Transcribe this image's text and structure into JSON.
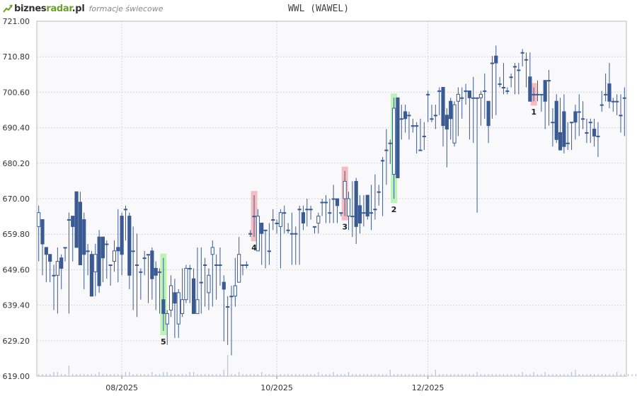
{
  "header": {
    "logo_text_main": "biznes",
    "logo_text_accent": "radar",
    "logo_text_tld": ".pl",
    "logo_subtitle": "formacje świecowe",
    "title": "WWL (WAWEL)"
  },
  "colors": {
    "background": "#f9f9fb",
    "grid": "#d8d8dc",
    "candle_down": "#3a5a93",
    "candle_up_fill": "#ffffff",
    "candle_up_stroke": "#3a5a93",
    "volume": "#a9c6e6",
    "highlight_bearish": "#f4a7ad",
    "highlight_bullish": "#a8f0a0",
    "logo_accent": "#6aa126"
  },
  "chart_data": {
    "type": "candlestick",
    "title": "WWL (WAWEL)",
    "ylim": [
      619.0,
      721.0
    ],
    "yticks": [
      "721.00",
      "710.80",
      "700.60",
      "690.40",
      "680.20",
      "670.00",
      "659.80",
      "649.60",
      "639.40",
      "629.20",
      "619.00"
    ],
    "xticks": [
      {
        "index": 22,
        "label": "08/2025"
      },
      {
        "index": 63,
        "label": "10/2025"
      },
      {
        "index": 103,
        "label": "12/2025"
      }
    ],
    "candles": [
      [
        662.0,
        666.0,
        668.0,
        652.0
      ],
      [
        664.0,
        657.0,
        664.0,
        648.0
      ],
      [
        656.0,
        654.0,
        656.0,
        646.0
      ],
      [
        654.0,
        652.0,
        654.0,
        646.0
      ],
      [
        648.0,
        648.0,
        651.0,
        638.0
      ],
      [
        648.0,
        652.0,
        656.0,
        637.0
      ],
      [
        653.0,
        650.0,
        654.0,
        644.0
      ],
      [
        656.0,
        656.0,
        656.0,
        652.0
      ],
      [
        664.0,
        664.0,
        666.0,
        637.0
      ],
      [
        665.0,
        662.0,
        665.0,
        652.0
      ],
      [
        672.0,
        656.0,
        672.0,
        656.0
      ],
      [
        669.0,
        651.0,
        672.0,
        651.0
      ],
      [
        664.0,
        654.0,
        666.0,
        644.0
      ],
      [
        655.0,
        655.0,
        657.0,
        648.0
      ],
      [
        654.0,
        642.0,
        655.0,
        642.0
      ],
      [
        649.0,
        654.0,
        657.0,
        642.0
      ],
      [
        659.0,
        645.0,
        661.0,
        643.0
      ],
      [
        659.0,
        653.0,
        659.0,
        646.0
      ],
      [
        657.0,
        657.0,
        658.0,
        647.0
      ],
      [
        651.0,
        651.0,
        651.0,
        645.0
      ],
      [
        652.0,
        655.0,
        658.0,
        649.0
      ],
      [
        656.0,
        655.0,
        667.0,
        646.0
      ],
      [
        665.0,
        654.0,
        666.0,
        648.0
      ],
      [
        667.0,
        667.0,
        668.0,
        658.0
      ],
      [
        665.0,
        648.0,
        666.0,
        644.0
      ],
      [
        655.0,
        655.0,
        662.0,
        638.0
      ],
      [
        651.0,
        651.0,
        660.0,
        636.0
      ],
      [
        649.0,
        649.0,
        650.0,
        641.0
      ],
      [
        653.0,
        653.0,
        655.0,
        648.0
      ],
      [
        654.0,
        654.0,
        654.0,
        640.0
      ],
      [
        655.0,
        647.0,
        656.0,
        641.0
      ],
      [
        650.0,
        648.0,
        652.0,
        638.0
      ],
      [
        649.0,
        649.0,
        650.0,
        637.0
      ],
      [
        641.0,
        637.0,
        653.0,
        632.0
      ],
      [
        634.0,
        637.0,
        638.0,
        628.0
      ],
      [
        638.0,
        645.0,
        648.0,
        636.0
      ],
      [
        643.0,
        640.0,
        647.0,
        630.0
      ],
      [
        634.0,
        643.0,
        644.0,
        630.0
      ],
      [
        637.0,
        641.0,
        650.0,
        636.0
      ],
      [
        641.0,
        650.0,
        651.0,
        640.0
      ],
      [
        650.0,
        650.0,
        651.0,
        640.0
      ],
      [
        647.0,
        637.0,
        650.0,
        637.0
      ],
      [
        637.0,
        641.0,
        656.0,
        637.0
      ],
      [
        646.0,
        646.0,
        656.0,
        637.0
      ],
      [
        651.0,
        651.0,
        653.0,
        639.0
      ],
      [
        643.0,
        648.0,
        650.0,
        638.0
      ],
      [
        654.0,
        656.0,
        658.0,
        639.0
      ],
      [
        651.0,
        651.0,
        654.0,
        641.0
      ],
      [
        651.0,
        651.0,
        656.0,
        645.0
      ],
      [
        646.0,
        644.0,
        648.0,
        629.0
      ],
      [
        639.0,
        639.0,
        642.0,
        628.0
      ],
      [
        642.0,
        642.0,
        645.0,
        625.0
      ],
      [
        642.0,
        645.0,
        653.0,
        639.0
      ],
      [
        646.0,
        654.0,
        659.0,
        646.0
      ],
      [
        651.0,
        651.0,
        651.0,
        648.0
      ],
      [
        651.0,
        651.0,
        652.0,
        650.0
      ],
      [
        660.0,
        660.0,
        661.0,
        659.0
      ],
      [
        665.0,
        665.0,
        671.0,
        659.0
      ],
      [
        655.0,
        665.0,
        667.0,
        658.0
      ],
      [
        663.0,
        660.0,
        662.0,
        651.0
      ],
      [
        661.0,
        661.0,
        661.0,
        650.0
      ],
      [
        655.0,
        655.0,
        663.0,
        651.0
      ],
      [
        664.0,
        664.0,
        667.0,
        661.0
      ],
      [
        663.0,
        663.0,
        664.0,
        660.0
      ],
      [
        662.0,
        666.0,
        667.0,
        650.0
      ],
      [
        666.0,
        666.0,
        668.0,
        660.0
      ],
      [
        661.0,
        661.0,
        663.0,
        660.0
      ],
      [
        660.0,
        660.0,
        666.0,
        651.0
      ],
      [
        660.0,
        660.0,
        662.0,
        651.0
      ],
      [
        667.0,
        667.0,
        668.0,
        651.0
      ],
      [
        666.0,
        663.0,
        668.0,
        661.0
      ],
      [
        667.0,
        667.0,
        670.0,
        662.0
      ],
      [
        667.0,
        667.0,
        668.0,
        664.0
      ],
      [
        662.0,
        662.0,
        662.0,
        660.0
      ],
      [
        663.0,
        665.0,
        666.0,
        660.0
      ],
      [
        669.0,
        669.0,
        670.0,
        665.0
      ],
      [
        669.0,
        669.0,
        671.0,
        663.0
      ],
      [
        666.0,
        666.0,
        670.0,
        663.0
      ],
      [
        670.0,
        670.0,
        674.0,
        663.0
      ],
      [
        670.0,
        668.0,
        670.0,
        663.0
      ],
      [
        666.0,
        666.0,
        666.0,
        665.0
      ],
      [
        670.0,
        675.0,
        678.0,
        665.0
      ],
      [
        665.0,
        670.0,
        672.0,
        661.0
      ],
      [
        665.0,
        665.0,
        675.0,
        659.0
      ],
      [
        675.0,
        662.0,
        676.0,
        657.0
      ],
      [
        668.0,
        663.0,
        671.0,
        660.0
      ],
      [
        666.0,
        666.0,
        671.0,
        662.0
      ],
      [
        671.0,
        665.0,
        671.0,
        664.0
      ],
      [
        666.0,
        666.0,
        674.0,
        661.0
      ],
      [
        667.0,
        667.0,
        677.0,
        664.0
      ],
      [
        672.0,
        672.0,
        674.0,
        668.0
      ],
      [
        681.0,
        681.0,
        682.0,
        665.0
      ],
      [
        684.0,
        684.0,
        690.0,
        674.0
      ],
      [
        686.0,
        686.0,
        687.0,
        680.0
      ],
      [
        677.0,
        696.0,
        699.0,
        670.0
      ],
      [
        699.0,
        676.0,
        699.0,
        676.0
      ],
      [
        693.0,
        693.0,
        697.0,
        687.0
      ],
      [
        695.0,
        693.0,
        697.0,
        689.0
      ],
      [
        694.0,
        694.0,
        695.0,
        687.0
      ],
      [
        691.0,
        691.0,
        693.0,
        689.0
      ],
      [
        691.0,
        691.0,
        692.0,
        683.0
      ],
      [
        684.0,
        684.0,
        693.0,
        684.0
      ],
      [
        688.0,
        688.0,
        692.0,
        684.0
      ],
      [
        700.0,
        700.0,
        701.0,
        692.0
      ],
      [
        693.0,
        693.0,
        697.0,
        692.0
      ],
      [
        694.0,
        694.0,
        697.0,
        690.0
      ],
      [
        701.0,
        701.0,
        702.0,
        694.0
      ],
      [
        702.0,
        691.0,
        702.0,
        685.0
      ],
      [
        694.0,
        690.0,
        696.0,
        679.0
      ],
      [
        698.0,
        693.0,
        699.0,
        687.0
      ],
      [
        686.0,
        697.0,
        698.0,
        685.0
      ],
      [
        698.0,
        700.0,
        702.0,
        688.0
      ],
      [
        699.0,
        699.0,
        702.0,
        693.0
      ],
      [
        701.0,
        701.0,
        703.0,
        697.0
      ],
      [
        701.0,
        699.0,
        701.0,
        687.0
      ],
      [
        699.0,
        699.0,
        705.0,
        686.0
      ],
      [
        699.0,
        699.0,
        699.0,
        666.0
      ],
      [
        699.0,
        700.0,
        701.0,
        691.0
      ],
      [
        701.0,
        701.0,
        706.0,
        693.0
      ],
      [
        698.0,
        691.0,
        698.0,
        686.0
      ],
      [
        709.0,
        709.0,
        711.0,
        693.0
      ],
      [
        711.0,
        709.0,
        714.0,
        694.0
      ],
      [
        703.0,
        703.0,
        705.0,
        702.0
      ],
      [
        702.0,
        702.0,
        709.0,
        700.0
      ],
      [
        701.0,
        701.0,
        702.0,
        700.0
      ],
      [
        705.0,
        705.0,
        706.0,
        702.0
      ],
      [
        708.0,
        708.0,
        709.0,
        700.0
      ],
      [
        707.0,
        707.0,
        709.0,
        700.0
      ],
      [
        712.0,
        712.0,
        713.0,
        708.0
      ],
      [
        710.0,
        710.0,
        712.0,
        702.0
      ],
      [
        705.0,
        698.0,
        712.0,
        698.0
      ],
      [
        700.0,
        700.0,
        702.0,
        698.0
      ],
      [
        700.0,
        700.0,
        704.0,
        698.0
      ],
      [
        700.0,
        700.0,
        700.0,
        695.0
      ],
      [
        704.0,
        698.0,
        704.0,
        690.0
      ],
      [
        704.0,
        704.0,
        707.0,
        691.0
      ],
      [
        692.0,
        692.0,
        696.0,
        685.0
      ],
      [
        698.0,
        687.0,
        700.0,
        686.0
      ],
      [
        689.0,
        684.0,
        699.0,
        684.0
      ],
      [
        695.0,
        685.0,
        700.0,
        683.0
      ],
      [
        686.0,
        686.0,
        692.0,
        684.0
      ],
      [
        692.0,
        692.0,
        692.0,
        684.0
      ],
      [
        695.0,
        692.0,
        697.0,
        687.0
      ],
      [
        695.0,
        695.0,
        700.0,
        688.0
      ],
      [
        693.0,
        693.0,
        698.0,
        690.0
      ],
      [
        689.0,
        689.0,
        693.0,
        686.0
      ],
      [
        692.0,
        692.0,
        693.0,
        686.0
      ],
      [
        690.0,
        688.0,
        693.0,
        685.0
      ],
      [
        688.0,
        688.0,
        692.0,
        682.0
      ],
      [
        697.0,
        697.0,
        701.0,
        695.0
      ],
      [
        700.0,
        700.0,
        706.0,
        698.0
      ],
      [
        703.0,
        698.0,
        709.0,
        696.0
      ],
      [
        698.0,
        698.0,
        699.0,
        695.0
      ],
      [
        698.0,
        698.0,
        700.0,
        694.0
      ],
      [
        694.0,
        694.0,
        700.0,
        689.0
      ],
      [
        699.0,
        699.0,
        702.0,
        688.0
      ]
    ],
    "volume": [
      1,
      1,
      1,
      1,
      2,
      2,
      1,
      1,
      5,
      1,
      1,
      1,
      1,
      1,
      1,
      1,
      2,
      1,
      1,
      1,
      1,
      1,
      1,
      2,
      2,
      1,
      1,
      1,
      1,
      1,
      2,
      1,
      1,
      2,
      2,
      1,
      1,
      1,
      1,
      1,
      2,
      2,
      1,
      1,
      1,
      1,
      1,
      1,
      1,
      3,
      10,
      1,
      1,
      2,
      1,
      1,
      1,
      1,
      1,
      2,
      1,
      1,
      1,
      1,
      1,
      1,
      1,
      1,
      1,
      1,
      1,
      1,
      1,
      1,
      2,
      1,
      1,
      1,
      2,
      1,
      1,
      1,
      2,
      1,
      1,
      1,
      1,
      1,
      1,
      1,
      1,
      1,
      1,
      3,
      1,
      1,
      1,
      1,
      1,
      1,
      1,
      1,
      1,
      1,
      1,
      3,
      1,
      1,
      1,
      1,
      1,
      1,
      1,
      1,
      1,
      1,
      2,
      1,
      1,
      1,
      1,
      1,
      1,
      1,
      1,
      1,
      1,
      1,
      2,
      1,
      1,
      2,
      1,
      1,
      2,
      1,
      1,
      1,
      1,
      1,
      1,
      2,
      3,
      1,
      1,
      1,
      1,
      1,
      1,
      1,
      1,
      1,
      1,
      2,
      1,
      1,
      1,
      1,
      1,
      1
    ],
    "patterns": [
      {
        "index": 131,
        "label": "1",
        "kind": "bearish"
      },
      {
        "index": 94,
        "label": "2",
        "kind": "bullish"
      },
      {
        "index": 81,
        "label": "3",
        "kind": "bearish"
      },
      {
        "index": 57,
        "label": "4",
        "kind": "bearish"
      },
      {
        "index": 33,
        "label": "5",
        "kind": "bullish"
      }
    ]
  }
}
